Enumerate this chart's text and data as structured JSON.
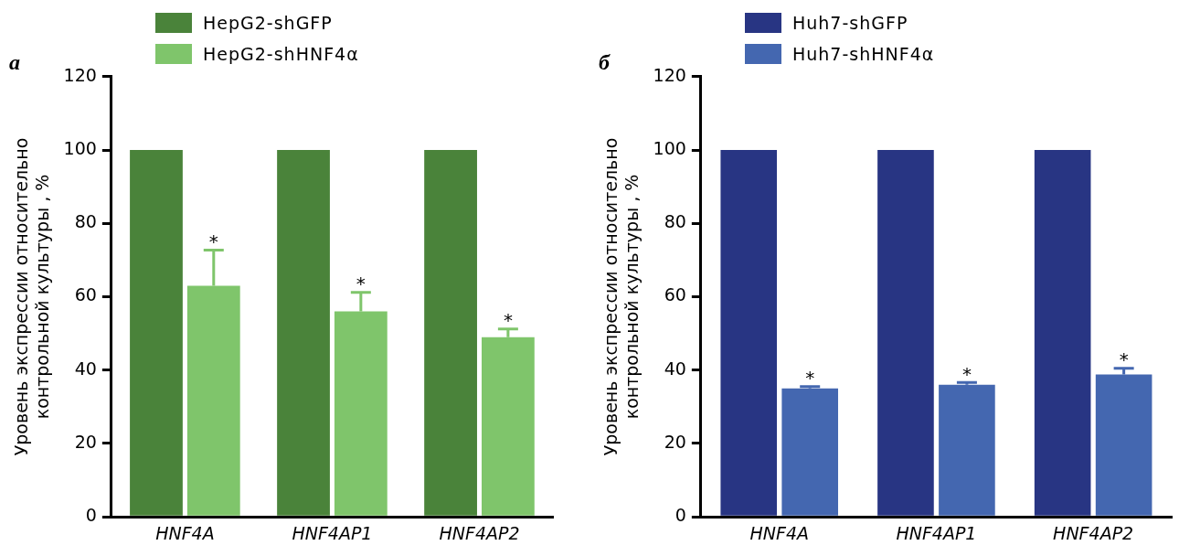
{
  "chart_data": [
    {
      "type": "bar",
      "title": "а",
      "ylabel": "Уровень экспрессии относительно\nконтрольной культуры , %",
      "categories": [
        "HNF4A",
        "HNF4AP1",
        "HNF4AP2"
      ],
      "ylim": [
        0,
        120
      ],
      "yticks": [
        0,
        20,
        40,
        60,
        80,
        100,
        120
      ],
      "grid": false,
      "legend": "top left",
      "series": [
        {
          "name": "HepG2-shGFP",
          "color": "#4a833a",
          "values": [
            100,
            100,
            100
          ]
        },
        {
          "name": "HepG2-shHNF4α",
          "color": "#7fc56b",
          "values": [
            63,
            56,
            49
          ],
          "errors": [
            [
              63,
              72.7
            ],
            [
              56,
              61.2
            ],
            [
              49,
              51.2
            ]
          ],
          "value_labels": [
            "*",
            "*",
            "*"
          ]
        }
      ]
    },
    {
      "type": "bar",
      "title": "б",
      "ylabel": "Уровень экспрессии относительно\nконтрольной культуры , %",
      "categories": [
        "HNF4A",
        "HNF4AP1",
        "HNF4AP2"
      ],
      "ylim": [
        0,
        120
      ],
      "yticks": [
        0,
        20,
        40,
        60,
        80,
        100,
        120
      ],
      "grid": false,
      "legend": "top left",
      "series": [
        {
          "name": "Huh7-shGFP",
          "color": "#283583",
          "values": [
            100,
            100,
            100
          ]
        },
        {
          "name": "Huh7-shHNF4α",
          "color": "#4467b0",
          "values": [
            35,
            36,
            38.8
          ],
          "errors": [
            [
              35,
              35.5
            ],
            [
              36,
              36.6
            ],
            [
              38.8,
              40.5
            ]
          ],
          "value_labels": [
            "*",
            "*",
            "*"
          ]
        }
      ]
    }
  ]
}
